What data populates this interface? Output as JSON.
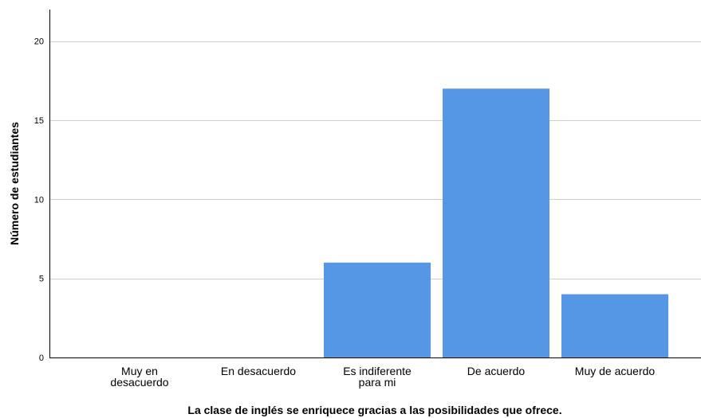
{
  "chart_data": {
    "type": "bar",
    "title": "",
    "xlabel": "La clase de inglés se enriquece gracias a las posibilidades que ofrece.",
    "ylabel": "Número de estudiantes",
    "categories": [
      [
        "Muy en",
        "desacuerdo"
      ],
      [
        "En desacuerdo"
      ],
      [
        "Es indiferente",
        "para mi"
      ],
      [
        "De acuerdo"
      ],
      [
        "Muy de acuerdo"
      ]
    ],
    "values": [
      0,
      0,
      6,
      17,
      4
    ],
    "ylim": [
      0,
      22
    ],
    "yticks": [
      0,
      5,
      10,
      15,
      20
    ],
    "grid": true,
    "bar_color": "#5597e4",
    "grid_color": "#cfcfcf",
    "axis_color": "#000000"
  }
}
